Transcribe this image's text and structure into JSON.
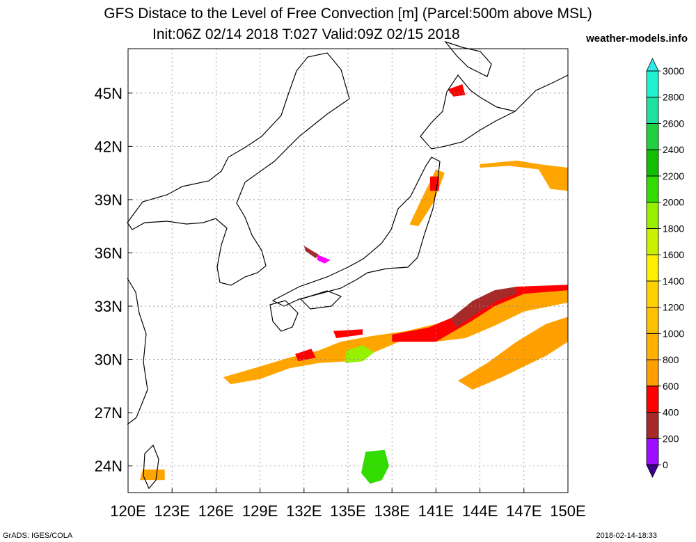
{
  "title_line1": "GFS Distace to the Level of Free Convection [m] (Parcel:500m above MSL)",
  "title_line2": "Init:06Z 02/14 2018 T:027 Valid:09Z 02/15 2018",
  "brand": "weather-models.info",
  "footer_left": "GrADS: IGES/COLA",
  "footer_right": "2018-02-14-18:33",
  "map": {
    "lon_range": [
      120,
      150
    ],
    "lat_range": [
      22.5,
      47.5
    ],
    "lat_ticks": [
      {
        "value": 24,
        "label": "24N"
      },
      {
        "value": 27,
        "label": "27N"
      },
      {
        "value": 30,
        "label": "30N"
      },
      {
        "value": 33,
        "label": "33N"
      },
      {
        "value": 36,
        "label": "36N"
      },
      {
        "value": 39,
        "label": "39N"
      },
      {
        "value": 42,
        "label": "42N"
      },
      {
        "value": 45,
        "label": "45N"
      }
    ],
    "lon_ticks": [
      {
        "value": 120,
        "label": "120E"
      },
      {
        "value": 123,
        "label": "123E"
      },
      {
        "value": 126,
        "label": "126E"
      },
      {
        "value": 129,
        "label": "129E"
      },
      {
        "value": 132,
        "label": "132E"
      },
      {
        "value": 135,
        "label": "135E"
      },
      {
        "value": 138,
        "label": "138E"
      },
      {
        "value": 141,
        "label": "141E"
      },
      {
        "value": 144,
        "label": "144E"
      },
      {
        "value": 147,
        "label": "147E"
      },
      {
        "value": 150,
        "label": "150E"
      }
    ],
    "grid": true
  },
  "colorbar": {
    "labels": [
      "0",
      "200",
      "400",
      "600",
      "800",
      "1000",
      "1200",
      "1400",
      "1600",
      "1800",
      "2000",
      "2200",
      "2400",
      "2600",
      "2800",
      "3000"
    ],
    "colors": [
      "#9b0eff",
      "#a52a2a",
      "#ff0000",
      "#ffa000",
      "#ffb000",
      "#ffc000",
      "#ffd000",
      "#ffee00",
      "#c8f000",
      "#96f000",
      "#32dc00",
      "#10c000",
      "#20d040",
      "#20e0a0",
      "#20f0d0"
    ],
    "low_cap_color": "#3c0090",
    "high_cap_color": "#30e8e8"
  },
  "fields": [
    {
      "color": "#ffa500",
      "poly": [
        [
          126.5,
          29.0
        ],
        [
          129.0,
          29.6
        ],
        [
          131.0,
          30.1
        ],
        [
          133.0,
          30.5
        ],
        [
          134.5,
          31.0
        ],
        [
          136.5,
          31.3
        ],
        [
          139.0,
          31.6
        ],
        [
          141.0,
          32.0
        ],
        [
          143.0,
          32.6
        ],
        [
          146.0,
          33.8
        ],
        [
          150.0,
          34.0
        ],
        [
          150.0,
          33.2
        ],
        [
          147.0,
          32.7
        ],
        [
          145.0,
          31.9
        ],
        [
          143.0,
          31.2
        ],
        [
          141.0,
          31.0
        ],
        [
          138.5,
          31.0
        ],
        [
          136.5,
          30.3
        ],
        [
          135.0,
          29.9
        ],
        [
          133.0,
          29.8
        ],
        [
          131.0,
          29.5
        ],
        [
          129.0,
          28.9
        ],
        [
          127.0,
          28.6
        ]
      ]
    },
    {
      "color": "#ff9f00",
      "poly": [
        [
          142.5,
          28.8
        ],
        [
          144.5,
          29.8
        ],
        [
          146.5,
          31.0
        ],
        [
          148.5,
          32.0
        ],
        [
          150.0,
          32.4
        ],
        [
          150.0,
          31.0
        ],
        [
          148.5,
          30.2
        ],
        [
          147.0,
          29.6
        ],
        [
          145.5,
          29.0
        ],
        [
          143.5,
          28.3
        ]
      ]
    },
    {
      "color": "#ff0000",
      "poly": [
        [
          138.0,
          31.4
        ],
        [
          140.5,
          31.8
        ],
        [
          142.5,
          32.5
        ],
        [
          144.5,
          33.6
        ],
        [
          146.5,
          34.1
        ],
        [
          150.0,
          34.2
        ],
        [
          150.0,
          33.9
        ],
        [
          147.0,
          33.7
        ],
        [
          145.0,
          33.0
        ],
        [
          143.5,
          32.2
        ],
        [
          141.0,
          31.0
        ],
        [
          138.0,
          31.0
        ]
      ]
    },
    {
      "color": "#a52a2a",
      "poly": [
        [
          142.0,
          32.3
        ],
        [
          143.5,
          33.3
        ],
        [
          145.0,
          33.9
        ],
        [
          146.5,
          34.1
        ],
        [
          146.5,
          33.7
        ],
        [
          145.2,
          33.3
        ],
        [
          143.6,
          32.5
        ],
        [
          142.4,
          31.8
        ]
      ]
    },
    {
      "color": "#ff0000",
      "poly": [
        [
          134.0,
          31.6
        ],
        [
          136.0,
          31.7
        ],
        [
          136.0,
          31.4
        ],
        [
          134.2,
          31.2
        ]
      ]
    },
    {
      "color": "#ff0000",
      "poly": [
        [
          131.4,
          30.3
        ],
        [
          132.5,
          30.6
        ],
        [
          132.8,
          30.1
        ],
        [
          131.6,
          29.9
        ]
      ]
    },
    {
      "color": "#32dc00",
      "poly": [
        [
          136.2,
          24.8
        ],
        [
          137.5,
          24.9
        ],
        [
          137.8,
          24.0
        ],
        [
          137.3,
          23.2
        ],
        [
          136.5,
          23.0
        ],
        [
          135.9,
          23.6
        ]
      ]
    },
    {
      "color": "#96f000",
      "poly": [
        [
          134.8,
          29.8
        ],
        [
          136.0,
          29.9
        ],
        [
          136.8,
          30.4
        ],
        [
          136.0,
          30.8
        ],
        [
          134.9,
          30.5
        ]
      ]
    },
    {
      "color": "#ffa500",
      "poly": [
        [
          139.8,
          37.5
        ],
        [
          140.8,
          38.8
        ],
        [
          141.6,
          40.5
        ],
        [
          141.0,
          40.7
        ],
        [
          140.0,
          39.0
        ],
        [
          139.2,
          37.6
        ]
      ]
    },
    {
      "color": "#ff0000",
      "poly": [
        [
          140.6,
          39.5
        ],
        [
          141.2,
          39.5
        ],
        [
          141.2,
          40.3
        ],
        [
          140.6,
          40.3
        ]
      ]
    },
    {
      "color": "#ffa500",
      "poly": [
        [
          144.0,
          41.0
        ],
        [
          146.5,
          41.2
        ],
        [
          148.0,
          41.0
        ],
        [
          150.0,
          40.8
        ],
        [
          150.0,
          39.5
        ],
        [
          148.8,
          39.6
        ],
        [
          148.0,
          40.7
        ],
        [
          146.0,
          40.9
        ],
        [
          144.0,
          40.8
        ]
      ]
    },
    {
      "color": "#ff0000",
      "poly": [
        [
          141.8,
          45.2
        ],
        [
          142.8,
          45.5
        ],
        [
          143.0,
          44.9
        ],
        [
          142.2,
          44.8
        ]
      ]
    },
    {
      "color": "#ffa500",
      "poly": [
        [
          120.8,
          23.2
        ],
        [
          122.5,
          23.2
        ],
        [
          122.5,
          23.8
        ],
        [
          121.0,
          23.8
        ]
      ]
    },
    {
      "color": "#a52a2a",
      "poly": [
        [
          132.0,
          36.4
        ],
        [
          132.6,
          36.1
        ],
        [
          133.0,
          35.9
        ],
        [
          132.8,
          35.7
        ],
        [
          132.1,
          36.1
        ]
      ]
    },
    {
      "color": "#ff00ff",
      "poly": [
        [
          132.9,
          35.9
        ],
        [
          133.5,
          35.7
        ],
        [
          133.8,
          35.6
        ],
        [
          133.4,
          35.4
        ],
        [
          132.9,
          35.6
        ]
      ]
    }
  ]
}
